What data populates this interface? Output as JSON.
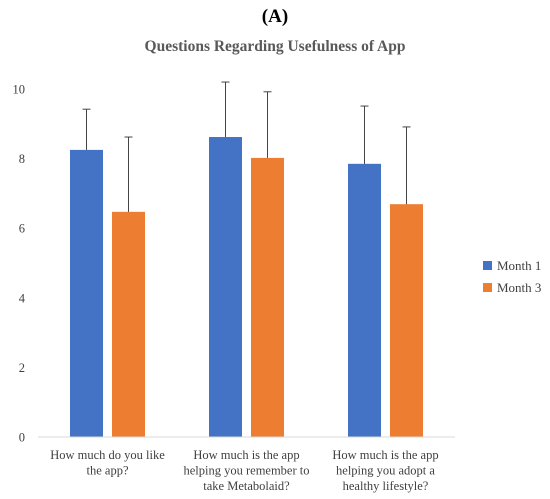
{
  "panel_label": "(A)",
  "chart_data": {
    "type": "bar",
    "title": "Questions Regarding Usefulness of App",
    "xlabel": "",
    "ylabel": "",
    "ylim": [
      0,
      10
    ],
    "yticks": [
      0,
      2,
      4,
      6,
      8,
      10
    ],
    "grid": false,
    "legend_position": "right",
    "categories": [
      [
        "How much do you like",
        "the app?"
      ],
      [
        "How much is the app",
        "helping you remember to",
        "take Metabolaid?"
      ],
      [
        "How much is the app",
        "helping you adopt a",
        "healthy lifestyle?"
      ]
    ],
    "series": [
      {
        "name": "Month 1",
        "color": "#4472C4",
        "values": [
          8.25,
          8.62,
          7.85
        ],
        "error": [
          1.17,
          1.58,
          1.66
        ]
      },
      {
        "name": "Month 3",
        "color": "#ED7D31",
        "values": [
          6.47,
          8.02,
          6.69
        ],
        "error": [
          2.15,
          1.9,
          2.22
        ]
      }
    ]
  }
}
